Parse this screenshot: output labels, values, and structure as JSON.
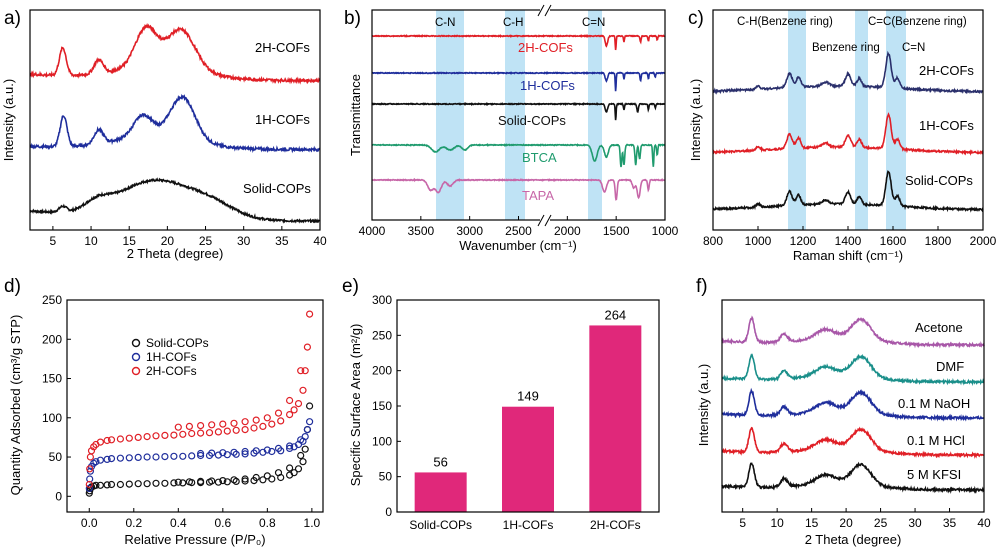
{
  "colors": {
    "red": "#e01f26",
    "blue": "#1f2e9c",
    "black": "#111111",
    "green": "#1f9b6e",
    "pink": "#c767a8",
    "purple": "#a857a8",
    "teal": "#1a8f8a",
    "magenta": "#e0287a",
    "band": "#bfe3f5",
    "darknavy": "#2a2f6b"
  },
  "chart_data": [
    {
      "id": "a",
      "panel_label": "a)",
      "type": "line",
      "xlabel": "2 Theta (degree)",
      "ylabel": "Intensity (a.u.)",
      "xlim": [
        2,
        40
      ],
      "xticks": [
        5,
        10,
        15,
        20,
        25,
        30,
        35,
        40
      ],
      "series": [
        {
          "name": "Solid-COPs",
          "color": "black",
          "offset": 0,
          "peaks": [
            [
              6.3,
              0.08,
              0.5
            ],
            [
              10.8,
              0.12,
              1.5
            ],
            [
              18.5,
              0.55,
              5
            ],
            [
              26,
              0.15,
              3
            ]
          ],
          "base": 0.16,
          "noise": 0.03
        },
        {
          "name": "1H-COFs",
          "color": "blue",
          "offset": 1.05,
          "peaks": [
            [
              6.4,
              0.45,
              0.45
            ],
            [
              11,
              0.2,
              0.6
            ],
            [
              16.8,
              0.3,
              1.2
            ],
            [
              22,
              0.6,
              1.6
            ],
            [
              18.5,
              0.2,
              5
            ]
          ],
          "base": 0.05,
          "noise": 0.04
        },
        {
          "name": "2H-COFs",
          "color": "red",
          "offset": 2.05,
          "peaks": [
            [
              6.3,
              0.4,
              0.45
            ],
            [
              11,
              0.2,
              0.6
            ],
            [
              17.2,
              0.55,
              1.4
            ],
            [
              21.8,
              0.55,
              1.8
            ],
            [
              19,
              0.2,
              5
            ]
          ],
          "base": 0.1,
          "noise": 0.04
        }
      ]
    },
    {
      "id": "b",
      "panel_label": "b)",
      "type": "line",
      "xlabel": "Wavenumber (cm⁻¹)",
      "ylabel": "Transmittance",
      "xlim": [
        4000,
        1000
      ],
      "xticks": [
        4000,
        3500,
        3000,
        2500,
        2000,
        1500,
        1000
      ],
      "annotations": [
        "C-N",
        "C-H",
        "C=N"
      ],
      "series": [
        {
          "name": "2H-COFs",
          "color": "red"
        },
        {
          "name": "1H-COFs",
          "color": "blue"
        },
        {
          "name": "Solid-COPs",
          "color": "black"
        },
        {
          "name": "BTCA",
          "color": "green"
        },
        {
          "name": "TAPA",
          "color": "pink"
        }
      ]
    },
    {
      "id": "c",
      "panel_label": "c)",
      "type": "line",
      "xlabel": "Raman shift (cm⁻¹)",
      "ylabel": "Intensity (a.u.)",
      "xlim": [
        800,
        2000
      ],
      "xticks": [
        800,
        1000,
        1200,
        1400,
        1600,
        1800,
        2000
      ],
      "annotations": [
        "C-H(Benzene ring)",
        "Benzene ring",
        "C=C(Benzene ring)",
        "C=N"
      ],
      "series": [
        {
          "name": "Solid-COPs",
          "color": "black"
        },
        {
          "name": "1H-COFs",
          "color": "red"
        },
        {
          "name": "2H-COFs",
          "color": "darknavy"
        }
      ]
    },
    {
      "id": "d",
      "panel_label": "d)",
      "type": "scatter",
      "xlabel": "Relative Pressure (P/P₀)",
      "ylabel": "Quantity Adsorbed (cm³/g STP)",
      "xlim": [
        -0.1,
        1.05
      ],
      "ylim": [
        -20,
        250
      ],
      "xticks": [
        0.0,
        0.2,
        0.4,
        0.6,
        0.8,
        1.0
      ],
      "yticks": [
        0,
        50,
        100,
        150,
        200,
        250
      ],
      "series": [
        {
          "name": "Solid-COPs",
          "color": "black",
          "x": [
            0,
            0.002,
            0.005,
            0.01,
            0.02,
            0.03,
            0.05,
            0.08,
            0.1,
            0.14,
            0.18,
            0.22,
            0.26,
            0.3,
            0.34,
            0.38,
            0.42,
            0.46,
            0.5,
            0.54,
            0.58,
            0.62,
            0.66,
            0.7,
            0.74,
            0.78,
            0.82,
            0.86,
            0.9,
            0.92,
            0.94,
            0.96,
            0.97,
            0.98,
            0.99,
            0.95,
            0.9,
            0.85,
            0.8,
            0.75,
            0.7,
            0.65,
            0.6,
            0.55,
            0.5,
            0.45,
            0.4
          ],
          "y": [
            4,
            7,
            10,
            12,
            13,
            14,
            14,
            14.5,
            15,
            15,
            15.5,
            16,
            16,
            16.5,
            16.5,
            17,
            17,
            17.5,
            17.5,
            18,
            18,
            18.5,
            19,
            19.5,
            20,
            21,
            22,
            24,
            27,
            30,
            35,
            44,
            60,
            85,
            115,
            52,
            36,
            30,
            26,
            24,
            22,
            21,
            20,
            19.5,
            19,
            18.5,
            18
          ]
        },
        {
          "name": "1H-COFs",
          "color": "blue",
          "x": [
            0,
            0.002,
            0.005,
            0.01,
            0.02,
            0.03,
            0.05,
            0.08,
            0.1,
            0.14,
            0.18,
            0.22,
            0.26,
            0.3,
            0.34,
            0.38,
            0.42,
            0.46,
            0.5,
            0.54,
            0.58,
            0.62,
            0.66,
            0.7,
            0.74,
            0.78,
            0.82,
            0.86,
            0.9,
            0.92,
            0.94,
            0.96,
            0.97,
            0.98,
            0.99,
            0.95,
            0.9,
            0.85,
            0.8,
            0.75,
            0.7,
            0.65,
            0.6,
            0.55,
            0.5
          ],
          "y": [
            10,
            22,
            32,
            38,
            42,
            44,
            46,
            47,
            48,
            48.5,
            49,
            49.5,
            50,
            50,
            50.5,
            51,
            51,
            51.5,
            52,
            52,
            52.5,
            53,
            53.5,
            54,
            55,
            56,
            57,
            58,
            61,
            63,
            66,
            70,
            76,
            85,
            95,
            72,
            64,
            61,
            59,
            58,
            57,
            56,
            55.5,
            55,
            54.5
          ]
        },
        {
          "name": "2H-COFs",
          "color": "red",
          "x": [
            0,
            0.002,
            0.005,
            0.01,
            0.02,
            0.03,
            0.05,
            0.08,
            0.1,
            0.14,
            0.18,
            0.22,
            0.26,
            0.3,
            0.34,
            0.38,
            0.42,
            0.46,
            0.5,
            0.54,
            0.58,
            0.62,
            0.66,
            0.7,
            0.74,
            0.78,
            0.82,
            0.86,
            0.9,
            0.92,
            0.94,
            0.96,
            0.97,
            0.98,
            0.99,
            0.95,
            0.9,
            0.85,
            0.8,
            0.75,
            0.7,
            0.65,
            0.6,
            0.55,
            0.5,
            0.45,
            0.4
          ],
          "y": [
            15,
            35,
            50,
            58,
            63,
            66,
            69,
            71,
            72,
            73,
            74,
            75,
            76,
            77,
            77.5,
            78,
            79,
            80,
            80.5,
            81,
            82,
            83,
            84,
            85,
            87,
            89,
            92,
            96,
            104,
            110,
            118,
            135,
            160,
            190,
            232,
            160,
            122,
            106,
            100,
            97,
            95,
            93,
            92,
            91,
            90,
            89,
            88
          ]
        }
      ]
    },
    {
      "id": "e",
      "panel_label": "e)",
      "type": "bar",
      "xlabel": "",
      "ylabel": "Specific Surface Area (m²/g)",
      "ylim": [
        0,
        300
      ],
      "yticks": [
        0,
        50,
        100,
        150,
        200,
        250,
        300
      ],
      "categories": [
        "Solid-COPs",
        "1H-COFs",
        "2H-COFs"
      ],
      "values": [
        56,
        149,
        264
      ],
      "value_labels": [
        "56",
        "149",
        "264"
      ]
    },
    {
      "id": "f",
      "panel_label": "f)",
      "type": "line",
      "xlabel": "2 Theta (degree)",
      "ylabel": "Intensity (a.u.)",
      "xlim": [
        2,
        40
      ],
      "xticks": [
        5,
        10,
        15,
        20,
        25,
        30,
        35,
        40
      ],
      "series": [
        {
          "name": "5 M KFSI",
          "color": "black"
        },
        {
          "name": "0.1 M HCl",
          "color": "red"
        },
        {
          "name": "0.1 M NaOH",
          "color": "blue"
        },
        {
          "name": "DMF",
          "color": "teal"
        },
        {
          "name": "Acetone",
          "color": "purple"
        }
      ]
    }
  ]
}
